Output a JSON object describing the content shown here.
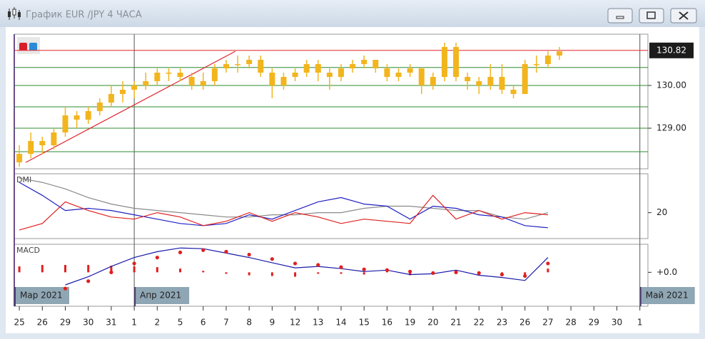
{
  "window": {
    "title": "График EUR /JPY  4 ЧАСА"
  },
  "chart_data": [
    {
      "type": "candlestick",
      "x": [
        0,
        0.5,
        1,
        1.5,
        2,
        2.5,
        3,
        3.5,
        4,
        4.5,
        5,
        5.5,
        6,
        6.5,
        7,
        7.5,
        8,
        8.5,
        9,
        9.5,
        10,
        10.5,
        11,
        11.5,
        12,
        12.5,
        13,
        13.5,
        14,
        14.5,
        15,
        15.5,
        16,
        16.5,
        17,
        17.5,
        18,
        18.5,
        19,
        19.5,
        20,
        20.5,
        21,
        21.5,
        22,
        22.5,
        23,
        23.5
      ],
      "open": [
        128.2,
        128.4,
        128.7,
        128.6,
        128.9,
        129.3,
        129.2,
        129.4,
        129.6,
        129.8,
        129.9,
        130.0,
        130.1,
        130.3,
        130.3,
        130.2,
        130.0,
        130.1,
        130.4,
        130.5,
        130.5,
        130.6,
        130.3,
        130.0,
        130.2,
        130.3,
        130.5,
        130.3,
        130.2,
        130.4,
        130.5,
        130.6,
        130.4,
        130.2,
        130.3,
        130.4,
        130.0,
        130.2,
        130.9,
        130.2,
        130.1,
        130.0,
        130.2,
        129.9,
        129.8,
        130.5,
        130.5,
        130.7
      ],
      "high": [
        128.6,
        128.9,
        128.8,
        129.0,
        129.5,
        129.4,
        129.5,
        129.7,
        130.0,
        130.1,
        130.1,
        130.3,
        130.4,
        130.4,
        130.4,
        130.3,
        130.3,
        130.5,
        130.6,
        130.7,
        130.7,
        130.7,
        130.4,
        130.3,
        130.4,
        130.6,
        130.6,
        130.4,
        130.5,
        130.6,
        130.7,
        130.6,
        130.5,
        130.4,
        130.5,
        130.4,
        130.3,
        131.0,
        131.0,
        130.3,
        130.2,
        130.5,
        130.5,
        130.0,
        130.6,
        130.7,
        130.8,
        130.9
      ],
      "low": [
        128.1,
        128.3,
        128.4,
        128.5,
        128.8,
        129.0,
        129.1,
        129.3,
        129.5,
        129.6,
        129.7,
        129.9,
        130.0,
        130.1,
        130.1,
        129.9,
        129.9,
        130.0,
        130.3,
        130.3,
        130.4,
        130.2,
        129.7,
        129.9,
        130.1,
        130.2,
        130.1,
        129.9,
        130.1,
        130.3,
        130.4,
        130.3,
        130.1,
        130.1,
        130.2,
        129.8,
        129.9,
        130.1,
        130.1,
        129.9,
        129.8,
        129.9,
        129.8,
        129.7,
        129.8,
        130.3,
        130.4,
        130.6
      ],
      "close": [
        128.4,
        128.7,
        128.6,
        128.9,
        129.3,
        129.2,
        129.4,
        129.6,
        129.8,
        129.9,
        130.0,
        130.1,
        130.3,
        130.3,
        130.2,
        130.0,
        130.1,
        130.4,
        130.5,
        130.5,
        130.6,
        130.3,
        130.0,
        130.2,
        130.3,
        130.5,
        130.3,
        130.2,
        130.4,
        130.5,
        130.6,
        130.4,
        130.2,
        130.3,
        130.4,
        130.0,
        130.2,
        130.9,
        130.2,
        130.1,
        130.0,
        130.2,
        129.9,
        129.8,
        130.5,
        130.5,
        130.7,
        130.8
      ],
      "color": "#f2b51e",
      "ylim": [
        128.05,
        131.2
      ],
      "yticks": [
        {
          "value": 129,
          "label": "129.00"
        },
        {
          "value": 130,
          "label": "130.00"
        }
      ],
      "grid_lines": [
        128.45,
        129,
        129.5,
        130,
        130.42
      ],
      "grid_color": "#2e8b2e",
      "last_price": {
        "value": 130.82,
        "label": "130.82"
      },
      "last_price_color": "#e0242a",
      "trendline": {
        "x": [
          0.28,
          9.4
        ],
        "y": [
          128.2,
          130.8
        ],
        "color": "#e0242a"
      },
      "xlim": [
        -0.22,
        27.35
      ],
      "xticks": [
        {
          "value": 0,
          "label": "25"
        },
        {
          "value": 1,
          "label": "26"
        },
        {
          "value": 2,
          "label": "29"
        },
        {
          "value": 3,
          "label": "30"
        },
        {
          "value": 4,
          "label": "31"
        },
        {
          "value": 5,
          "label": "1"
        },
        {
          "value": 6,
          "label": "2"
        },
        {
          "value": 7,
          "label": "5"
        },
        {
          "value": 8,
          "label": "6"
        },
        {
          "value": 9,
          "label": "7"
        },
        {
          "value": 10,
          "label": "8"
        },
        {
          "value": 11,
          "label": "9"
        },
        {
          "value": 12,
          "label": "12"
        },
        {
          "value": 13,
          "label": "13"
        },
        {
          "value": 14,
          "label": "14"
        },
        {
          "value": 15,
          "label": "15"
        },
        {
          "value": 16,
          "label": "16"
        },
        {
          "value": 17,
          "label": "19"
        },
        {
          "value": 18,
          "label": "20"
        },
        {
          "value": 19,
          "label": "21"
        },
        {
          "value": 20,
          "label": "22"
        },
        {
          "value": 21,
          "label": "23"
        },
        {
          "value": 22,
          "label": "26"
        },
        {
          "value": 23,
          "label": "27"
        },
        {
          "value": 24,
          "label": "28"
        },
        {
          "value": 25,
          "label": "29"
        },
        {
          "value": 26,
          "label": "30"
        },
        {
          "value": 27,
          "label": "1"
        }
      ],
      "month_ticks": [
        {
          "value": -0.22,
          "label": "Мар 2021"
        },
        {
          "value": 5,
          "label": "Апр 2021"
        },
        {
          "value": 27,
          "label": "Май 2021"
        }
      ]
    },
    {
      "type": "line",
      "title": "DMI",
      "x": [
        0,
        1,
        2,
        3,
        4,
        5,
        6,
        7,
        8,
        9,
        10,
        11,
        12,
        13,
        14,
        15,
        16,
        17,
        18,
        19,
        20,
        21,
        22,
        23
      ],
      "ylim": [
        8,
        38
      ],
      "yticks": [
        20
      ],
      "series": [
        {
          "color": "#8a8a8a",
          "values": [
            36,
            34,
            31,
            27,
            24,
            22,
            21,
            20,
            19,
            18,
            18,
            19,
            19,
            20,
            20,
            22,
            23,
            23,
            22,
            21,
            21,
            18,
            17,
            20
          ]
        },
        {
          "color": "#2020c0",
          "values": [
            34,
            28,
            21,
            22,
            21,
            19,
            17,
            15,
            14,
            15,
            19,
            17,
            21,
            25,
            27,
            24,
            23,
            17,
            23,
            22,
            19,
            18,
            14,
            13
          ]
        },
        {
          "color": "#e02020",
          "values": [
            12,
            15,
            25,
            21,
            18,
            17,
            20,
            18,
            14,
            16,
            20,
            16,
            20,
            18,
            15,
            17,
            16,
            15,
            28,
            17,
            21,
            17,
            20,
            19
          ]
        }
      ]
    },
    {
      "type": "macd",
      "title": "MACD",
      "x": [
        0,
        1,
        2,
        3,
        4,
        5,
        6,
        7,
        8,
        9,
        10,
        11,
        12,
        13,
        14,
        15,
        16,
        17,
        18,
        19,
        20,
        21,
        22,
        23
      ],
      "ylim": [
        -0.46,
        0.38
      ],
      "yticks": [
        {
          "value": 0,
          "label": "+0.0"
        }
      ],
      "series": [
        {
          "style": "bars",
          "color": "#e02020",
          "values": [
            0.08,
            0.1,
            0.1,
            0.1,
            0.09,
            0.08,
            0.07,
            0.05,
            0.02,
            -0.02,
            -0.04,
            -0.05,
            -0.06,
            -0.02,
            -0.02,
            -0.03,
            0.01,
            -0.04,
            -0.01,
            0.03,
            -0.03,
            -0.04,
            -0.06,
            0.05
          ]
        },
        {
          "style": "line",
          "color": "#1a1aa8",
          "values": [
            null,
            null,
            -0.17,
            -0.06,
            0.08,
            0.2,
            0.28,
            0.33,
            0.32,
            0.26,
            0.2,
            0.13,
            0.06,
            0.08,
            0.05,
            0.01,
            0.03,
            -0.03,
            -0.02,
            0.03,
            -0.04,
            -0.07,
            -0.11,
            0.2
          ]
        },
        {
          "style": "dots",
          "color": "#e02020",
          "values": [
            null,
            null,
            -0.22,
            -0.12,
            0.0,
            0.12,
            0.2,
            0.27,
            0.3,
            0.28,
            0.24,
            0.18,
            0.12,
            0.1,
            0.07,
            0.04,
            0.03,
            0.01,
            -0.01,
            0.0,
            -0.01,
            -0.03,
            -0.05,
            0.12
          ]
        }
      ]
    }
  ]
}
